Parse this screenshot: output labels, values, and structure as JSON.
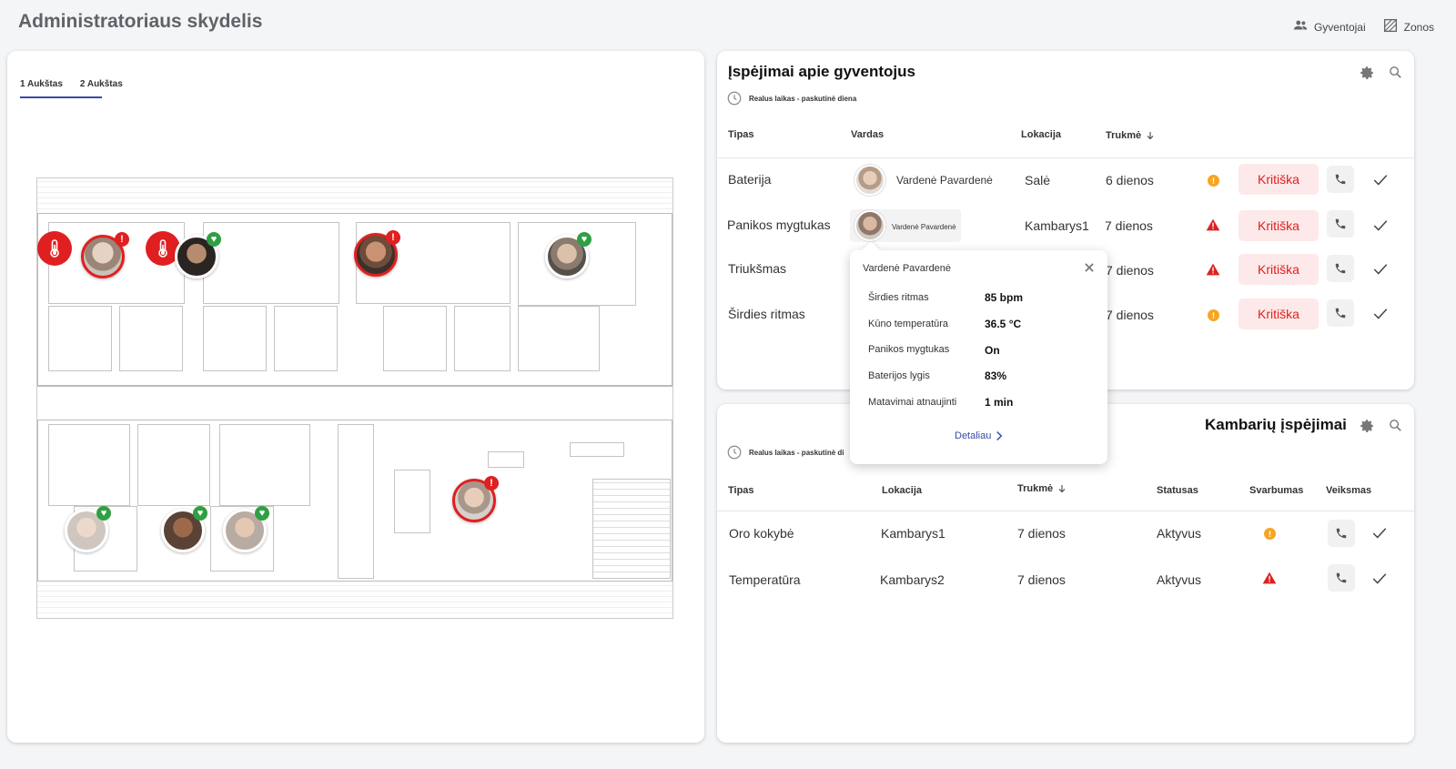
{
  "app": {
    "title": "Administratoriaus skydelis"
  },
  "nav": {
    "residents_label": "Gyventojai",
    "zones_label": "Zonos"
  },
  "map": {
    "tabs": [
      {
        "label": "1 Aukštas",
        "active": true
      },
      {
        "label": "2 Aukštas",
        "active": false
      }
    ]
  },
  "resident_alerts": {
    "title": "Įspėjimai apie gyventojus",
    "subtitle": "Realus laikas - paskutinė diena",
    "headers": {
      "type": "Tipas",
      "name": "Vardas",
      "location": "Lokacija",
      "duration": "Trukmė"
    },
    "rows": [
      {
        "type": "Baterija",
        "name": "Vardenė Pavardenė",
        "location": "Salė",
        "duration": "6 dienos",
        "severity": "warning",
        "status": "Kritiška"
      },
      {
        "type": "Panikos mygtukas",
        "name": "Vardenė Pavardenė",
        "location": "Kambarys1",
        "duration": "7 dienos",
        "severity": "critical",
        "status": "Kritiška"
      },
      {
        "type": "Triukšmas",
        "name": "",
        "location": "",
        "duration": "7 dienos",
        "severity": "critical",
        "status": "Kritiška"
      },
      {
        "type": "Širdies ritmas",
        "name": "",
        "location": "",
        "duration": "7 dienos",
        "severity": "warning",
        "status": "Kritiška"
      }
    ]
  },
  "popover": {
    "name": "Vardenė Pavardenė",
    "metrics": [
      {
        "label": "Širdies ritmas",
        "value": "85 bpm"
      },
      {
        "label": "Kūno temperatūra",
        "value": "36.5 °C"
      },
      {
        "label": "Panikos mygtukas",
        "value": "On"
      },
      {
        "label": "Baterijos lygis",
        "value": "83%"
      },
      {
        "label": "Matavimai atnaujinti",
        "value": "1 min"
      }
    ],
    "details_link": "Detaliau"
  },
  "room_alerts": {
    "title": "Kambarių įspėjimai",
    "subtitle": "Realus laikas - paskutinė di",
    "headers": {
      "type": "Tipas",
      "location": "Lokacija",
      "duration": "Trukmė",
      "status": "Statusas",
      "importance": "Svarbumas",
      "actions": "Veiksmas"
    },
    "rows": [
      {
        "type": "Oro kokybė",
        "location": "Kambarys1",
        "duration": "7 dienos",
        "status": "Aktyvus",
        "severity": "warning"
      },
      {
        "type": "Temperatūra",
        "location": "Kambarys2",
        "duration": "7 dienos",
        "status": "Aktyvus",
        "severity": "critical"
      }
    ]
  },
  "colors": {
    "critical": "#e02020",
    "warning": "#f5a623",
    "ok": "#2ea043",
    "accent": "#3949ab"
  }
}
